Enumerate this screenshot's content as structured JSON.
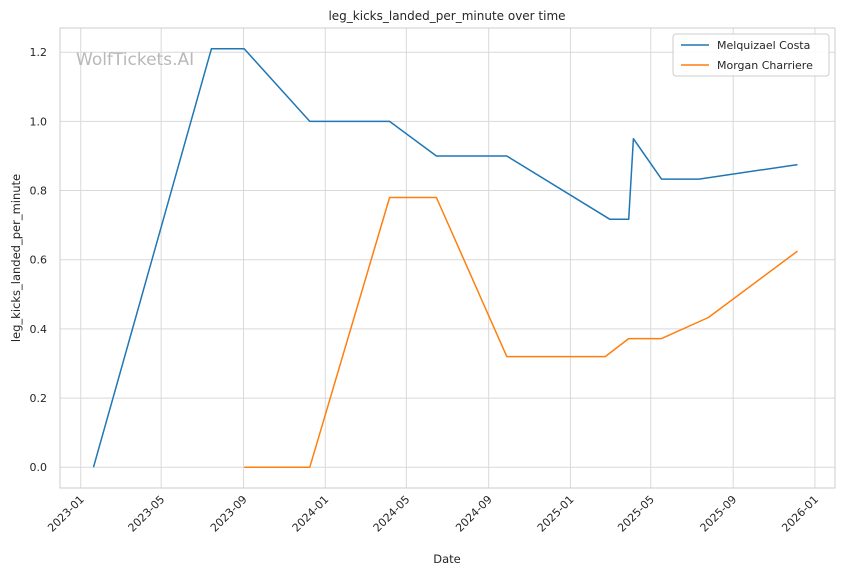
{
  "chart_data": {
    "type": "line",
    "title": "leg_kicks_landed_per_minute over time",
    "xlabel": "Date",
    "ylabel": "leg_kicks_landed_per_minute",
    "watermark": "WolfTickets.AI",
    "x_range": [
      "2022-12-01",
      "2026-01-31"
    ],
    "ylim": [
      -0.06,
      1.27
    ],
    "x_ticks": [
      "2023-01",
      "2023-05",
      "2023-09",
      "2024-01",
      "2024-05",
      "2024-09",
      "2025-01",
      "2025-05",
      "2025-09",
      "2026-01"
    ],
    "y_ticks": [
      "0.0",
      "0.2",
      "0.4",
      "0.6",
      "0.8",
      "1.0",
      "1.2"
    ],
    "grid": true,
    "legend_position": "top-right",
    "series": [
      {
        "name": "Melquizael Costa",
        "color": "#1f77b4",
        "points": [
          {
            "x": "2023-01-20",
            "y": 0.0
          },
          {
            "x": "2023-07-15",
            "y": 1.21
          },
          {
            "x": "2023-09-02",
            "y": 1.21
          },
          {
            "x": "2023-12-09",
            "y": 1.0
          },
          {
            "x": "2024-04-06",
            "y": 1.0
          },
          {
            "x": "2024-06-15",
            "y": 0.9
          },
          {
            "x": "2024-09-28",
            "y": 0.9
          },
          {
            "x": "2025-03-01",
            "y": 0.717
          },
          {
            "x": "2025-03-29",
            "y": 0.717
          },
          {
            "x": "2025-04-05",
            "y": 0.95
          },
          {
            "x": "2025-05-17",
            "y": 0.833
          },
          {
            "x": "2025-07-12",
            "y": 0.833
          },
          {
            "x": "2025-12-06",
            "y": 0.875
          }
        ]
      },
      {
        "name": "Morgan Charriere",
        "color": "#ff7f0e",
        "points": [
          {
            "x": "2023-09-02",
            "y": 0.0
          },
          {
            "x": "2023-12-09",
            "y": 0.0
          },
          {
            "x": "2024-04-06",
            "y": 0.78
          },
          {
            "x": "2024-06-15",
            "y": 0.78
          },
          {
            "x": "2024-09-28",
            "y": 0.32
          },
          {
            "x": "2025-02-22",
            "y": 0.32
          },
          {
            "x": "2025-03-29",
            "y": 0.372
          },
          {
            "x": "2025-05-17",
            "y": 0.372
          },
          {
            "x": "2025-07-26",
            "y": 0.433
          },
          {
            "x": "2025-12-06",
            "y": 0.625
          }
        ]
      }
    ]
  }
}
